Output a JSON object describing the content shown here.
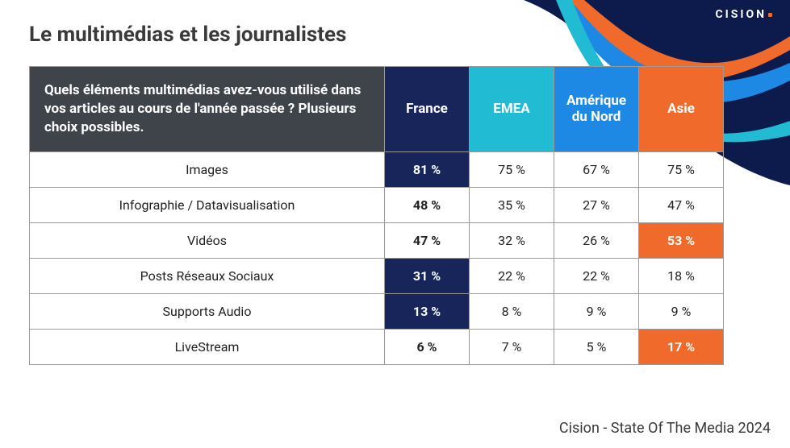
{
  "brand": {
    "name": "CISION"
  },
  "title": "Le multimédias et les journalistes",
  "footer": "Cision - State Of The Media 2024",
  "colors": {
    "header_bg": "#3e444a",
    "region_bg": [
      "#17255a",
      "#21bcd3",
      "#1e88e5",
      "#ef6a2b"
    ],
    "highlight_navy": "#17255a",
    "highlight_orange": "#ef6a2b",
    "swoosh": [
      "#0d1b4c",
      "#1e88e5",
      "#21bcd3",
      "#ef6a2b"
    ]
  },
  "table": {
    "question": "Quels éléments multimédias avez-vous utilisé dans vos articles au cours de l'année passée ? Plusieurs choix possibles.",
    "regions": [
      "France",
      "EMEA",
      "Amérique du Nord",
      "Asie"
    ],
    "rows": [
      {
        "label": "Images",
        "values": [
          "81 %",
          "75 %",
          "67 %",
          "75 %"
        ],
        "highlight": [
          "navy",
          null,
          null,
          null
        ]
      },
      {
        "label": "Infographie / Datavisualisation",
        "values": [
          "48 %",
          "35 %",
          "27 %",
          "47 %"
        ],
        "highlight": [
          "bold",
          null,
          null,
          null
        ]
      },
      {
        "label": "Vidéos",
        "values": [
          "47 %",
          "32 %",
          "26 %",
          "53 %"
        ],
        "highlight": [
          "bold",
          null,
          null,
          "orange"
        ]
      },
      {
        "label": "Posts Réseaux Sociaux",
        "values": [
          "31 %",
          "22 %",
          "22 %",
          "18 %"
        ],
        "highlight": [
          "navy",
          null,
          null,
          null
        ]
      },
      {
        "label": "Supports Audio",
        "values": [
          "13 %",
          "8 %",
          "9 %",
          "9 %"
        ],
        "highlight": [
          "navy",
          null,
          null,
          null
        ]
      },
      {
        "label": "LiveStream",
        "values": [
          "6 %",
          "7 %",
          "5 %",
          "17 %"
        ],
        "highlight": [
          "bold",
          null,
          null,
          "orange"
        ]
      }
    ]
  }
}
